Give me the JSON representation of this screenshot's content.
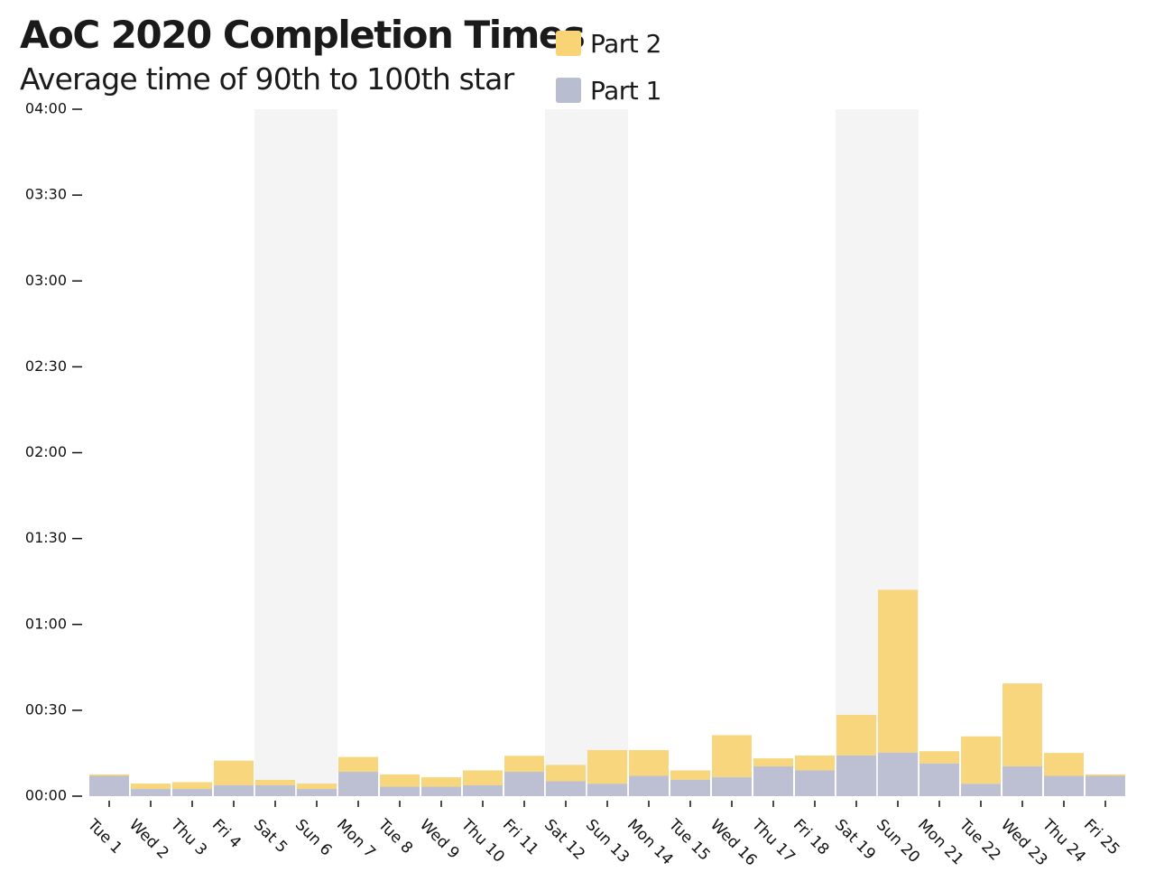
{
  "chart_data": {
    "type": "bar",
    "stacked": true,
    "title": "AoC 2020 Completion Times",
    "subtitle": "Average time of 90th to 100th star",
    "categories": [
      "Tue 1",
      "Wed 2",
      "Thu 3",
      "Fri 4",
      "Sat 5",
      "Sun 6",
      "Mon 7",
      "Tue 8",
      "Wed 9",
      "Thu 10",
      "Fri 11",
      "Sat 12",
      "Sun 13",
      "Mon 14",
      "Tue 15",
      "Wed 16",
      "Thu 17",
      "Fri 18",
      "Sat 19",
      "Sun 20",
      "Mon 21",
      "Tue 22",
      "Wed 23",
      "Thu 24",
      "Fri 25"
    ],
    "weekend_categories": [
      "Sat 5",
      "Sun 6",
      "Sat 12",
      "Sun 13",
      "Sat 19",
      "Sun 20"
    ],
    "y_unit": "minutes",
    "ylim": [
      0,
      240
    ],
    "y_ticks": [
      0,
      30,
      60,
      90,
      120,
      150,
      180,
      210,
      240
    ],
    "y_tick_labels": [
      "00:00",
      "00:30",
      "01:00",
      "01:30",
      "02:00",
      "02:30",
      "03:00",
      "03:30",
      "04:00"
    ],
    "series": [
      {
        "name": "Part 1",
        "color": "#b8bdd0",
        "values": [
          7.1,
          2.5,
          2.5,
          3.8,
          3.8,
          2.5,
          8.5,
          3.3,
          3.3,
          3.8,
          8.5,
          5.2,
          4.3,
          7.1,
          5.7,
          6.6,
          10.4,
          9.0,
          14.2,
          15.2,
          11.4,
          4.3,
          10.4,
          7.1,
          7.1
        ]
      },
      {
        "name": "Part 2",
        "color": "#f8d476",
        "values": [
          0.5,
          1.9,
          2.4,
          8.6,
          1.9,
          1.9,
          5.2,
          4.3,
          3.3,
          5.2,
          5.6,
          5.7,
          11.8,
          9.0,
          3.3,
          14.7,
          2.8,
          5.2,
          14.2,
          56.9,
          4.3,
          16.6,
          29.0,
          8.0,
          0.5
        ]
      }
    ],
    "legend": {
      "placement": "top",
      "items": [
        {
          "label": "Part 2",
          "color": "#f8d476"
        },
        {
          "label": "Part 1",
          "color": "#b8bdd0"
        }
      ]
    },
    "colors": {
      "weekend_background": "#f4f4f4",
      "axis": "#111111"
    }
  }
}
